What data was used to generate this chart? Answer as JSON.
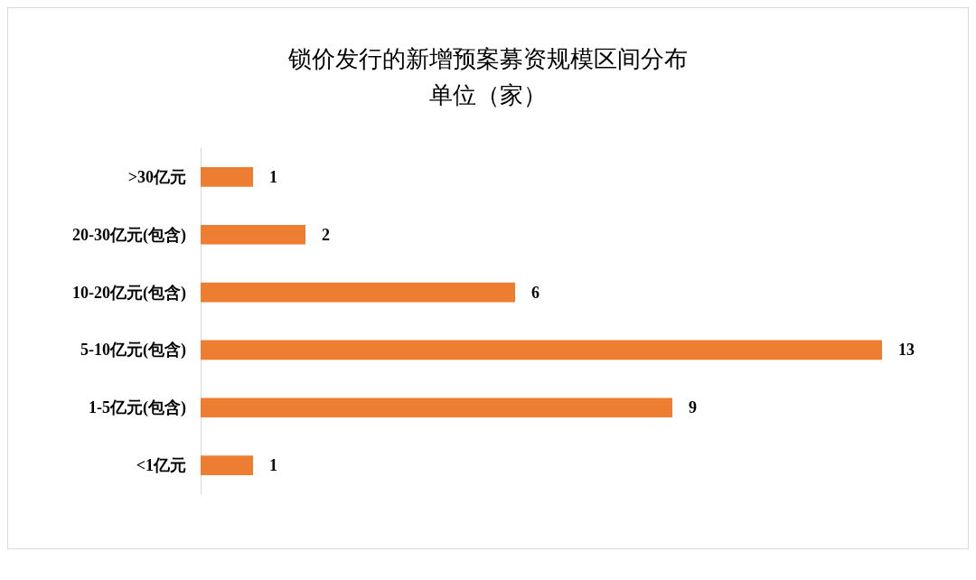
{
  "chart_data": {
    "type": "bar",
    "orientation": "horizontal",
    "title": "锁价发行的新增预案募资规模区间分布",
    "subtitle": "单位（家）",
    "categories": [
      ">30亿元",
      "20-30亿元(包含)",
      "10-20亿元(包含)",
      "5-10亿元(包含)",
      "1-5亿元(包含)",
      "<1亿元"
    ],
    "values": [
      1,
      2,
      6,
      13,
      9,
      1
    ],
    "color": "#ed7d31",
    "data_labels": true
  }
}
